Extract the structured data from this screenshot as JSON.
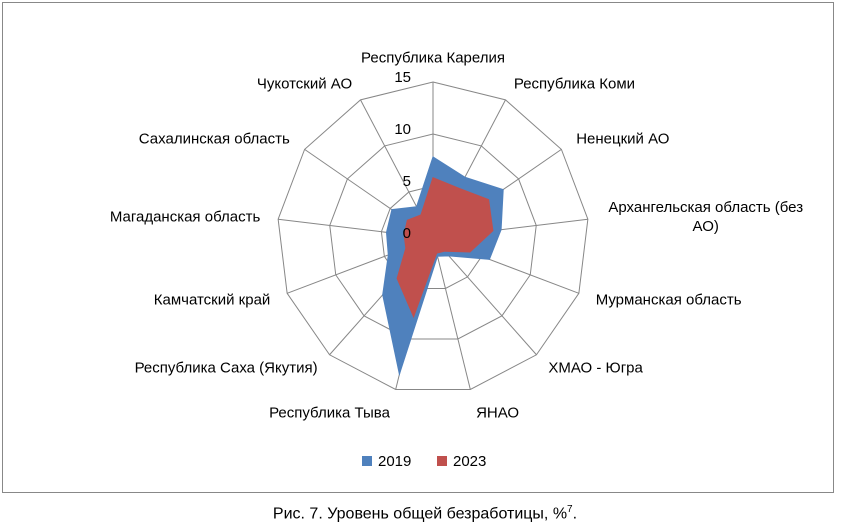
{
  "chart_data": {
    "type": "radar",
    "categories": [
      "Республика Карелия",
      "Республика Коми",
      "Ненецкий АО",
      "Архангельская область (без АО)",
      "Мурманская область",
      "ХМАО - Югра",
      "ЯНАО",
      "Республика Тыва",
      "Республика Саха (Якутия)",
      "Камчатский край",
      "Магаданская область",
      "Сахалинская область",
      "Чукотский АО"
    ],
    "series": [
      {
        "name": "2019",
        "color": "#4f81bd",
        "values": [
          7.8,
          6.6,
          8.2,
          6.6,
          5.8,
          2.3,
          1.8,
          13.5,
          7.3,
          4.6,
          4.5,
          4.8,
          3.4
        ]
      },
      {
        "name": "2023",
        "color": "#c0504d",
        "values": [
          5.8,
          5.4,
          6.5,
          5.8,
          3.8,
          1.7,
          1.5,
          7.8,
          5.2,
          2.8,
          2.8,
          3.0,
          2.5
        ]
      }
    ],
    "ylim": [
      0,
      15
    ],
    "yticks": [
      0,
      5,
      10,
      15
    ],
    "grid": true,
    "legend": "bottom",
    "caption": "Рис. 7. Уровень общей безработицы, %",
    "caption_footnote": "7",
    "caption_end": "."
  }
}
